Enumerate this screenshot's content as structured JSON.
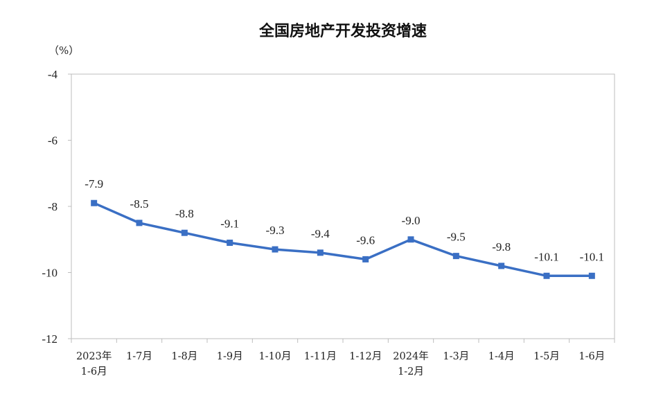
{
  "chart_data": {
    "type": "line",
    "title": "全国房地产开发投资增速",
    "ylabel": "（%）",
    "xlabel": "",
    "ylim": [
      -12,
      -4
    ],
    "yticks": [
      -4,
      -6,
      -8,
      -10,
      -12
    ],
    "categories": [
      [
        "2023年",
        "1-6月"
      ],
      [
        "1-7月"
      ],
      [
        "1-8月"
      ],
      [
        "1-9月"
      ],
      [
        "1-10月"
      ],
      [
        "1-11月"
      ],
      [
        "1-12月"
      ],
      [
        "2024年",
        "1-2月"
      ],
      [
        "1-3月"
      ],
      [
        "1-4月"
      ],
      [
        "1-5月"
      ],
      [
        "1-6月"
      ]
    ],
    "series": [
      {
        "values": [
          -7.9,
          -8.5,
          -8.8,
          -9.1,
          -9.3,
          -9.4,
          -9.6,
          -9.0,
          -9.5,
          -9.8,
          -10.1,
          -10.1
        ],
        "labels": [
          "-7.9",
          "-8.5",
          "-8.8",
          "-9.1",
          "-9.3",
          "-9.4",
          "-9.6",
          "-9.0",
          "-9.5",
          "-9.8",
          "-10.1",
          "-10.1"
        ],
        "color": "#3a6fc4"
      }
    ],
    "grid": false,
    "legend": "none"
  }
}
